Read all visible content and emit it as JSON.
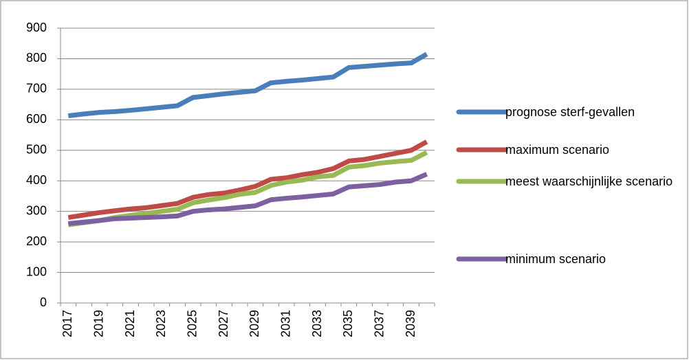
{
  "chart_data": {
    "type": "line",
    "categories": [
      "2017",
      null,
      "2019",
      null,
      "2021",
      null,
      "2023",
      null,
      "2025",
      null,
      "2027",
      null,
      "2029",
      null,
      "2031",
      null,
      "2033",
      null,
      "2035",
      null,
      "2037",
      null,
      "2039",
      null
    ],
    "series": [
      {
        "name": "prognose sterf-gevallen",
        "color": "#4a7ebb",
        "values": [
          613,
          619,
          624,
          627,
          631,
          636,
          641,
          646,
          673,
          679,
          685,
          690,
          695,
          721,
          726,
          730,
          735,
          740,
          771,
          775,
          779,
          783,
          786,
          815
        ]
      },
      {
        "name": "maximum scenario",
        "color": "#be4b48",
        "values": [
          280,
          288,
          296,
          302,
          308,
          312,
          319,
          326,
          346,
          355,
          360,
          370,
          382,
          405,
          410,
          420,
          428,
          440,
          465,
          470,
          480,
          490,
          500,
          528
        ]
      },
      {
        "name": "meest waarschijnlijke scenario",
        "color": "#98b954",
        "values": [
          256,
          263,
          270,
          280,
          287,
          293,
          300,
          307,
          328,
          337,
          345,
          356,
          362,
          385,
          396,
          402,
          413,
          418,
          445,
          450,
          458,
          463,
          467,
          493
        ]
      },
      {
        "name": "minimum scenario",
        "color": "#7d60a0",
        "values": [
          260,
          265,
          270,
          276,
          278,
          280,
          282,
          285,
          300,
          305,
          308,
          313,
          318,
          338,
          343,
          347,
          352,
          357,
          380,
          384,
          388,
          396,
          400,
          422
        ]
      }
    ],
    "ylim": [
      0,
      900
    ],
    "yticks": [
      0,
      100,
      200,
      300,
      400,
      500,
      600,
      700,
      800,
      900
    ],
    "grid": true,
    "legend": "right"
  }
}
